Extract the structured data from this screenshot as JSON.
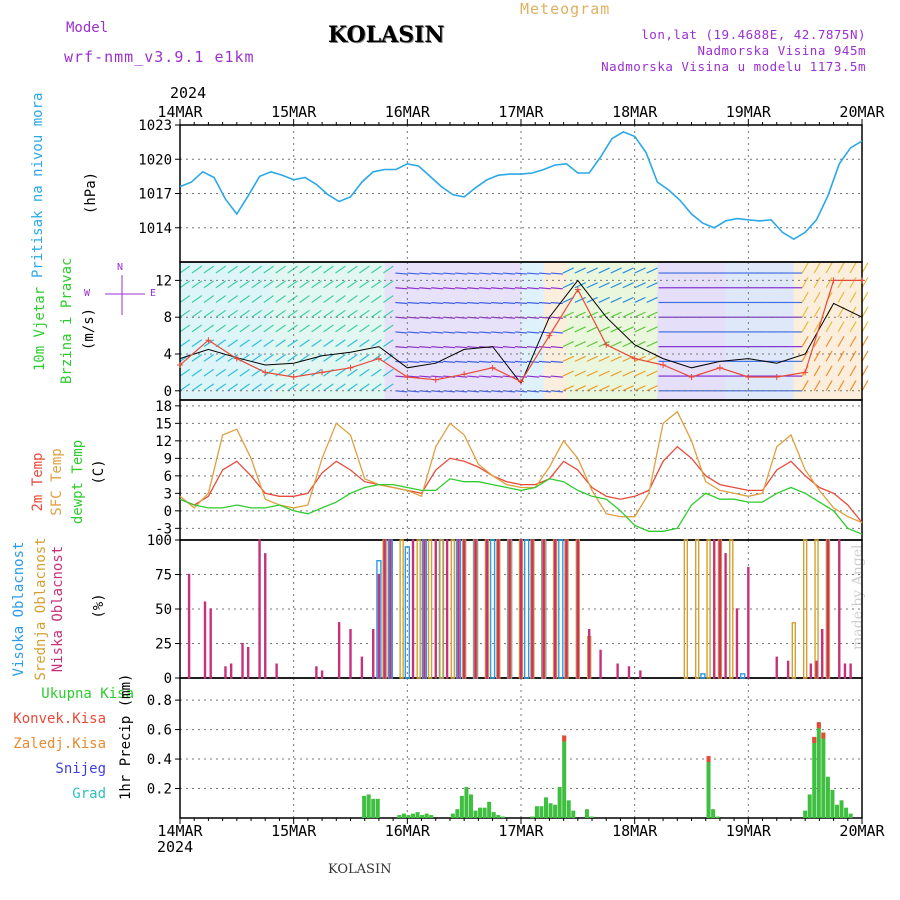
{
  "header": {
    "model_label": "Model",
    "model_name": "wrf-nmm_v3.9.1 e1km",
    "station": "KOLASIN",
    "title": "Meteogram",
    "lonlat": "lon,lat (19.4688E, 42.7875N)",
    "elevation": "Nadmorska Visina 945m",
    "model_elevation": "Nadmorska Visina u modelu 1173.5m",
    "year_top": "2024",
    "year_bottom": "2024",
    "footer": "KOLASIN",
    "credit": "made by Angel"
  },
  "colors": {
    "pressure": "#2aa8e8",
    "temp2m": "#e84a3a",
    "sfc": "#e0a040",
    "dewpt": "#2ecc2e",
    "high": "#2a9bea",
    "middle": "#d4a030",
    "low": "#c8307a",
    "precip_total": "#3fbf3f",
    "precip_conv": "#e84a3a",
    "label_purple": "#9b30d0"
  },
  "days": [
    "14MAR",
    "15MAR",
    "16MAR",
    "17MAR",
    "18MAR",
    "19MAR",
    "20MAR"
  ],
  "chart_data": [
    {
      "type": "line",
      "panel": "pressure",
      "ylabel": "Pritisak na nivou mora",
      "unit": "(hPa)",
      "ylim": [
        1011,
        1023
      ],
      "yticks": [
        1014,
        1017,
        1020,
        1023
      ],
      "x_days": [
        0,
        0.1,
        0.2,
        0.3,
        0.4,
        0.5,
        0.6,
        0.7,
        0.8,
        0.9,
        1,
        1.1,
        1.2,
        1.3,
        1.4,
        1.5,
        1.6,
        1.7,
        1.8,
        1.9,
        2,
        2.1,
        2.2,
        2.3,
        2.4,
        2.5,
        2.6,
        2.7,
        2.8,
        2.9,
        3,
        3.1,
        3.2,
        3.3,
        3.4,
        3.5,
        3.6,
        3.7,
        3.8,
        3.9,
        4,
        4.1,
        4.2,
        4.3,
        4.4,
        4.5,
        4.6,
        4.7,
        4.8,
        4.9,
        5,
        5.1,
        5.2,
        5.3,
        5.4,
        5.5,
        5.6,
        5.7,
        5.8,
        5.9,
        6
      ],
      "values": [
        1017.6,
        1018,
        1018.9,
        1018.4,
        1016.5,
        1015.2,
        1016.8,
        1018.5,
        1018.9,
        1018.6,
        1018.2,
        1018.4,
        1017.8,
        1016.9,
        1016.3,
        1016.7,
        1018,
        1018.9,
        1019.1,
        1019.1,
        1019.6,
        1019.4,
        1018.5,
        1017.6,
        1016.9,
        1016.7,
        1017.5,
        1018.2,
        1018.6,
        1018.7,
        1018.7,
        1018.8,
        1019.1,
        1019.5,
        1019.6,
        1018.8,
        1018.8,
        1020.2,
        1021.8,
        1022.4,
        1022,
        1020.6,
        1018,
        1017.3,
        1016.4,
        1015.2,
        1014.4,
        1014,
        1014.6,
        1014.8,
        1014.7,
        1014.6,
        1014.7,
        1013.6,
        1013,
        1013.6,
        1014.7,
        1016.8,
        1019.6,
        1021,
        1021.6
      ]
    },
    {
      "type": "line",
      "panel": "wind",
      "ylabel": "10m Vjetar Brzina i Pravac",
      "unit": "(m/s)",
      "compass": [
        "N",
        "W",
        "E"
      ],
      "ylim": [
        -1,
        14
      ],
      "yticks": [
        0,
        4,
        8,
        12
      ],
      "x_days": [
        0,
        0.25,
        0.5,
        0.75,
        1,
        1.25,
        1.5,
        1.75,
        2,
        2.25,
        2.5,
        2.75,
        3,
        3.25,
        3.5,
        3.75,
        4,
        4.25,
        4.5,
        4.75,
        5,
        5.25,
        5.5,
        5.75,
        6
      ],
      "series": [
        {
          "name": "gust",
          "color": "#000000",
          "values": [
            3.5,
            4.5,
            3.6,
            2.8,
            3,
            3.8,
            4.2,
            4.8,
            2.5,
            3,
            4.5,
            4.8,
            0.8,
            8,
            12,
            8,
            5,
            3.5,
            2.5,
            3.2,
            3.5,
            3,
            4,
            9.5,
            8
          ]
        },
        {
          "name": "speed",
          "color": "#e84a3a",
          "values": [
            2.8,
            5.5,
            3.5,
            2,
            1.5,
            2,
            2.5,
            3.5,
            1.5,
            1.2,
            1.8,
            2.5,
            1,
            6,
            11,
            5,
            3.5,
            2.8,
            1.5,
            2.5,
            1.5,
            1.5,
            2,
            12,
            12
          ]
        }
      ]
    },
    {
      "type": "line",
      "panel": "temperature",
      "ylabel": "2m Temp / SFC Temp / dewpt Temp",
      "unit": "(C)",
      "ylim": [
        -5,
        19
      ],
      "yticks": [
        -3,
        0,
        3,
        6,
        9,
        12,
        15,
        18
      ],
      "x_days": [
        0,
        0.125,
        0.25,
        0.375,
        0.5,
        0.625,
        0.75,
        0.875,
        1,
        1.125,
        1.25,
        1.375,
        1.5,
        1.625,
        1.75,
        1.875,
        2,
        2.125,
        2.25,
        2.375,
        2.5,
        2.625,
        2.75,
        2.875,
        3,
        3.125,
        3.25,
        3.375,
        3.5,
        3.625,
        3.75,
        3.875,
        4,
        4.125,
        4.25,
        4.375,
        4.5,
        4.625,
        4.75,
        4.875,
        5,
        5.125,
        5.25,
        5.375,
        5.5,
        5.625,
        5.75,
        5.875,
        6
      ],
      "series": [
        {
          "name": "2m Temp",
          "color": "#e84a3a",
          "values": [
            2,
            1,
            2.5,
            7,
            8.5,
            6,
            3,
            2.5,
            2.5,
            3,
            6.5,
            8.5,
            7,
            5,
            4.5,
            4,
            3.5,
            3,
            7,
            9,
            8.5,
            7.5,
            6,
            5,
            4.5,
            4.5,
            5.5,
            8.5,
            7,
            4,
            2.5,
            2,
            2.5,
            3.5,
            8.5,
            11,
            9,
            6,
            4.5,
            4,
            3.5,
            3.5,
            7,
            8.5,
            6,
            4,
            3,
            1,
            -2
          ]
        },
        {
          "name": "SFC Temp",
          "color": "#e0a040",
          "values": [
            2.5,
            0.5,
            3,
            13,
            14,
            9,
            2,
            1,
            0.5,
            1,
            9,
            15,
            13,
            5.5,
            4.5,
            4,
            3.5,
            2.5,
            11,
            15,
            13,
            8,
            6,
            4.5,
            4,
            4,
            7.5,
            12,
            9,
            3.5,
            -0.5,
            -1,
            -1,
            3,
            15,
            17,
            12,
            5,
            3.5,
            3,
            2.5,
            3,
            11,
            13,
            7,
            3.5,
            0.5,
            -1,
            -2
          ]
        },
        {
          "name": "dewpt Temp",
          "color": "#2ecc2e",
          "values": [
            2,
            1,
            0.5,
            0.5,
            1,
            0.5,
            0.5,
            1,
            0,
            -0.5,
            0.5,
            1.5,
            3,
            4,
            4.5,
            4.5,
            4,
            3.5,
            3.5,
            5.5,
            5,
            5,
            4.5,
            4,
            3.5,
            4,
            5.5,
            5,
            3.5,
            2.5,
            2,
            0,
            -2.5,
            -3.5,
            -3.5,
            -3,
            1,
            3,
            2,
            2,
            1.5,
            1.5,
            3,
            4,
            3,
            1.5,
            0,
            -3,
            -4
          ]
        }
      ]
    },
    {
      "type": "bar",
      "panel": "clouds",
      "ylabel": "Visoka Oblacnost / Srednja Oblacnost / Niska Oblacnost",
      "unit": "(%)",
      "ylim": [
        0,
        100
      ],
      "yticks": [
        0,
        25,
        50,
        75,
        100
      ],
      "low_x": [
        0.08,
        0.22,
        0.27,
        0.4,
        0.45,
        0.55,
        0.6,
        0.7,
        0.75,
        0.85,
        1.2,
        1.25,
        1.4,
        1.5,
        1.6,
        1.7,
        1.75,
        1.8,
        1.85,
        2.05,
        2.15,
        2.25,
        2.35,
        2.45,
        2.5,
        2.6,
        2.7,
        2.8,
        2.9,
        3,
        3.1,
        3.2,
        3.3,
        3.4,
        3.5,
        3.6,
        3.7,
        3.85,
        3.95,
        4.05,
        4.7,
        4.75,
        4.8,
        4.9,
        5,
        5.25,
        5.35,
        5.55,
        5.6,
        5.65,
        5.7,
        5.8,
        5.85,
        5.9
      ],
      "low_values": [
        75,
        55,
        50,
        8,
        10,
        25,
        22,
        100,
        90,
        10,
        8,
        5,
        40,
        35,
        15,
        35,
        75,
        100,
        100,
        100,
        100,
        100,
        100,
        100,
        100,
        100,
        100,
        100,
        100,
        100,
        100,
        100,
        100,
        100,
        100,
        35,
        20,
        10,
        8,
        5,
        100,
        100,
        90,
        50,
        80,
        15,
        12,
        10,
        12,
        35,
        100,
        100,
        10,
        10
      ],
      "middle_x": [
        1.8,
        1.95,
        2.1,
        2.2,
        2.3,
        2.4,
        2.5,
        2.6,
        2.7,
        2.8,
        2.9,
        3,
        3.1,
        3.2,
        3.3,
        3.4,
        3.5,
        3.6,
        4.45,
        4.55,
        4.65,
        4.75,
        4.85,
        5.4,
        5.5,
        5.6,
        5.7
      ],
      "middle_values": [
        100,
        100,
        100,
        100,
        100,
        100,
        100,
        100,
        100,
        100,
        100,
        100,
        100,
        100,
        100,
        100,
        100,
        30,
        100,
        100,
        100,
        100,
        100,
        40,
        100,
        100,
        100
      ],
      "high_x": [
        1.75,
        1.85,
        2,
        2.15,
        2.3,
        2.45,
        2.6,
        2.75,
        2.9,
        3.05,
        3.2,
        3.35,
        4.6,
        4.95
      ],
      "high_values": [
        85,
        100,
        95,
        100,
        100,
        100,
        100,
        100,
        100,
        100,
        100,
        100,
        3,
        3
      ]
    },
    {
      "type": "bar",
      "panel": "precipitation",
      "ylabel": "1hr Precip",
      "unit": "(mm)",
      "ylim": [
        0,
        0.95
      ],
      "yticks": [
        0.2,
        0.4,
        0.6,
        0.8
      ],
      "x": [
        1.62,
        1.66,
        1.7,
        1.74,
        1.93,
        1.97,
        2.01,
        2.05,
        2.09,
        2.13,
        2.17,
        2.21,
        2.4,
        2.44,
        2.48,
        2.52,
        2.56,
        2.6,
        2.64,
        2.68,
        2.72,
        2.76,
        2.8,
        2.84,
        3.1,
        3.14,
        3.18,
        3.22,
        3.26,
        3.3,
        3.34,
        3.38,
        3.42,
        3.46,
        3.58,
        3.62,
        4.65,
        4.69,
        4.73,
        5.5,
        5.54,
        5.58,
        5.62,
        5.66,
        5.7,
        5.74,
        5.78,
        5.82,
        5.86,
        5.9
      ],
      "values": [
        0.15,
        0.16,
        0.13,
        0.13,
        0.02,
        0.03,
        0.02,
        0.03,
        0.04,
        0.02,
        0.03,
        0.02,
        0.03,
        0.06,
        0.15,
        0.21,
        0.16,
        0.05,
        0.07,
        0.07,
        0.11,
        0.04,
        0.02,
        0.01,
        0.01,
        0.08,
        0.08,
        0.14,
        0.1,
        0.09,
        0.21,
        0.56,
        0.12,
        0.05,
        0.06,
        0.01,
        0.42,
        0.06,
        0.01,
        0.05,
        0.16,
        0.55,
        0.65,
        0.58,
        0.28,
        0.19,
        0.09,
        0.12,
        0.07,
        0.03
      ]
    }
  ],
  "labels": {
    "pressure": "Pritisak na nivou mora",
    "pressure_unit": "(hPa)",
    "wind1": "10m Vjetar",
    "wind2": "Brzina i Pravac",
    "wind_unit": "(m/s)",
    "temp2m": "2m Temp",
    "sfc": "SFC Temp",
    "dewpt": "dewpt Temp",
    "temp_unit": "(C)",
    "high": "Visoka Oblacnost",
    "middle": "Srednja Oblacnost",
    "low": "Niska Oblacnost",
    "cloud_unit": "(%)",
    "ukupna": "Ukupna Kisa",
    "konvek": "Konvek.Kisa",
    "zaledj": "Zaledj.Kisa",
    "snijeg": "Snijeg",
    "grad": "Grad",
    "precip": "1hr Precip",
    "precip_unit": "(mm)",
    "compass_n": "N",
    "compass_w": "W",
    "compass_e": "E"
  }
}
